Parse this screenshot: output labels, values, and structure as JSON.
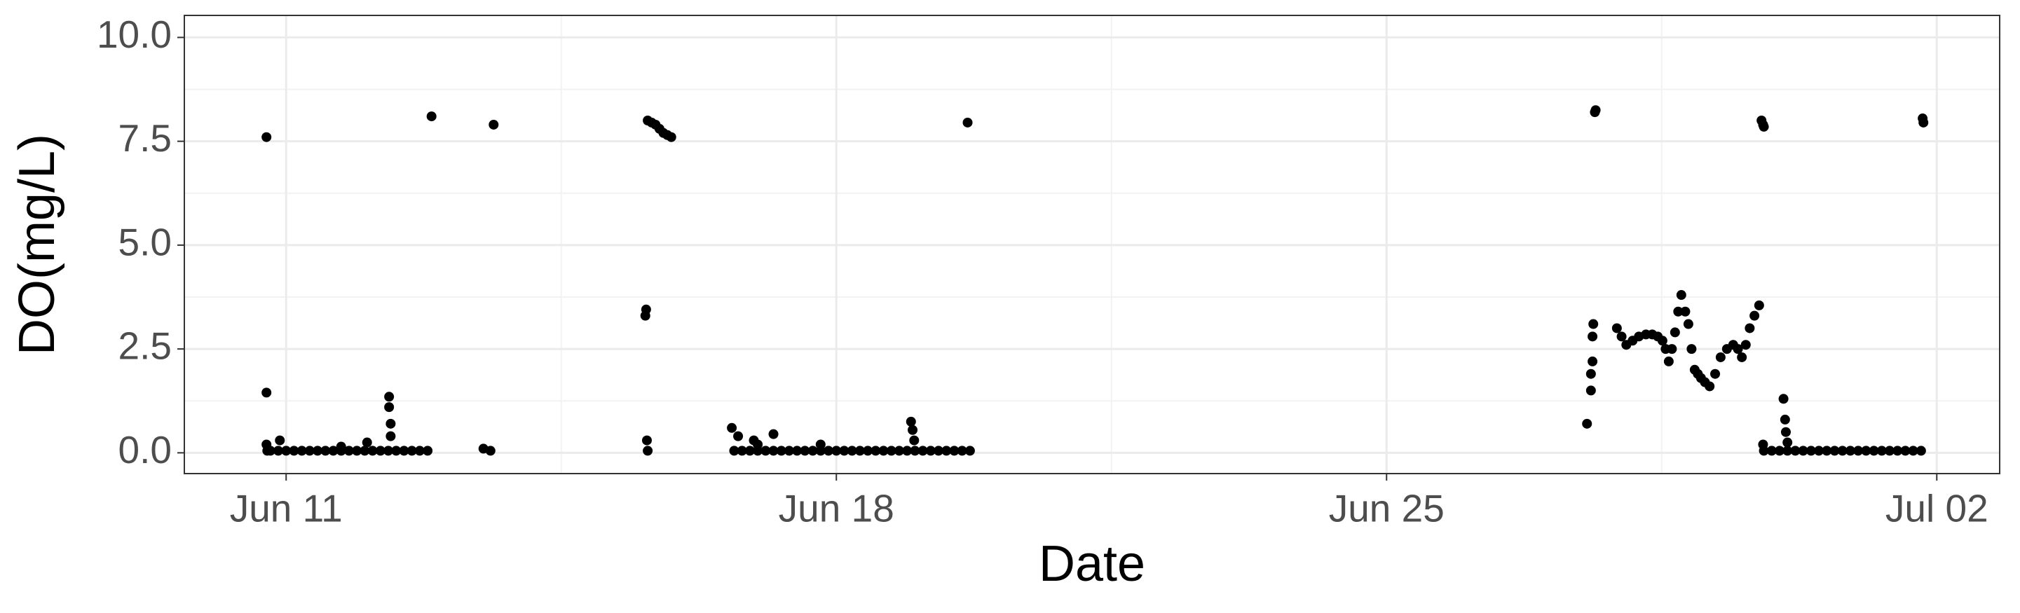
{
  "chart_data": {
    "type": "scatter",
    "x_label": "Date",
    "y_label": "DO(mg/L)",
    "xlim": [
      9.705,
      32.8
    ],
    "ylim": [
      -0.5,
      10.53
    ],
    "xticks": [
      {
        "value": 11,
        "label": "Jun 11"
      },
      {
        "value": 18,
        "label": "Jun 18"
      },
      {
        "value": 25,
        "label": "Jun 25"
      },
      {
        "value": 32,
        "label": "Jul 02"
      }
    ],
    "yticks": [
      {
        "value": 0,
        "label": "0.0"
      },
      2.5,
      {
        "value": 5,
        "label": "5.0"
      },
      7.5,
      {
        "value": 10,
        "label": "10.0"
      }
    ],
    "xminor": [
      14.5,
      21.5,
      28.5
    ],
    "yminor": [
      1.25,
      3.75,
      6.25,
      8.75
    ],
    "grid": true,
    "series": [
      {
        "color": "#000000",
        "x": [
          10.75,
          10.75,
          10.75,
          10.76,
          10.92,
          10.8,
          10.9,
          11.0,
          11.1,
          11.2,
          11.3,
          11.4,
          11.5,
          11.6,
          11.7,
          11.8,
          11.9,
          12.0,
          12.1,
          12.2,
          12.3,
          12.4,
          12.5,
          12.6,
          12.7,
          12.8,
          11.7,
          12.03,
          12.31,
          12.31,
          12.33,
          12.33,
          12.85,
          13.51,
          13.6,
          13.64,
          15.57,
          15.58,
          15.59,
          15.6,
          15.6,
          15.65,
          15.7,
          15.75,
          15.8,
          15.85,
          15.9,
          16.7,
          16.8,
          16.9,
          17.0,
          17.1,
          17.2,
          17.3,
          17.4,
          17.5,
          17.6,
          17.7,
          17.8,
          17.9,
          18.0,
          18.1,
          18.2,
          18.3,
          18.4,
          18.5,
          18.6,
          18.7,
          18.8,
          18.9,
          19.0,
          19.1,
          19.2,
          19.3,
          19.4,
          19.5,
          19.6,
          19.7,
          16.67,
          16.75,
          16.95,
          17.0,
          17.2,
          17.8,
          18.95,
          18.97,
          18.99,
          19.67,
          27.55,
          27.6,
          27.6,
          27.62,
          27.62,
          27.63,
          27.65,
          27.66,
          27.93,
          27.99,
          28.05,
          28.13,
          28.21,
          28.3,
          28.38,
          28.45,
          28.51,
          28.55,
          28.59,
          28.63,
          28.67,
          28.71,
          28.75,
          28.8,
          28.84,
          28.88,
          28.92,
          28.96,
          29.0,
          29.05,
          29.11,
          29.18,
          29.25,
          29.33,
          29.41,
          29.47,
          29.52,
          29.57,
          29.62,
          29.68,
          29.74,
          29.77,
          29.79,
          29.8,
          29.79,
          29.8,
          30.05,
          30.07,
          30.08,
          30.1,
          29.9,
          30.0,
          30.1,
          30.2,
          30.3,
          30.4,
          30.5,
          30.6,
          30.7,
          30.8,
          30.9,
          31.0,
          31.1,
          31.2,
          31.3,
          31.4,
          31.5,
          31.6,
          31.7,
          31.8,
          31.82,
          31.83
        ],
        "values": [
          7.6,
          1.45,
          0.2,
          0.05,
          0.3,
          0.05,
          0.05,
          0.05,
          0.05,
          0.05,
          0.05,
          0.05,
          0.05,
          0.05,
          0.05,
          0.05,
          0.05,
          0.05,
          0.05,
          0.05,
          0.05,
          0.05,
          0.05,
          0.05,
          0.05,
          0.05,
          0.15,
          0.25,
          1.35,
          1.1,
          0.7,
          0.4,
          8.1,
          0.1,
          0.05,
          7.9,
          3.3,
          3.45,
          0.3,
          0.05,
          8.0,
          7.95,
          7.9,
          7.8,
          7.7,
          7.65,
          7.6,
          0.05,
          0.05,
          0.05,
          0.05,
          0.05,
          0.05,
          0.05,
          0.05,
          0.05,
          0.05,
          0.05,
          0.05,
          0.05,
          0.05,
          0.05,
          0.05,
          0.05,
          0.05,
          0.05,
          0.05,
          0.05,
          0.05,
          0.05,
          0.05,
          0.05,
          0.05,
          0.05,
          0.05,
          0.05,
          0.05,
          0.05,
          0.6,
          0.4,
          0.3,
          0.2,
          0.45,
          0.2,
          0.75,
          0.55,
          0.3,
          7.95,
          0.7,
          1.5,
          1.9,
          2.2,
          2.8,
          3.1,
          8.2,
          8.25,
          3.0,
          2.8,
          2.6,
          2.7,
          2.8,
          2.85,
          2.85,
          2.8,
          2.7,
          2.5,
          2.2,
          2.5,
          2.9,
          3.4,
          3.8,
          3.4,
          3.1,
          2.5,
          2.0,
          1.9,
          1.8,
          1.7,
          1.6,
          1.9,
          2.3,
          2.5,
          2.6,
          2.5,
          2.3,
          2.6,
          3.0,
          3.3,
          3.55,
          8.0,
          7.9,
          7.85,
          0.2,
          0.05,
          1.3,
          0.8,
          0.5,
          0.25,
          0.05,
          0.05,
          0.05,
          0.05,
          0.05,
          0.05,
          0.05,
          0.05,
          0.05,
          0.05,
          0.05,
          0.05,
          0.05,
          0.05,
          0.05,
          0.05,
          0.05,
          0.05,
          0.05,
          0.05,
          8.05,
          7.95
        ]
      }
    ]
  }
}
